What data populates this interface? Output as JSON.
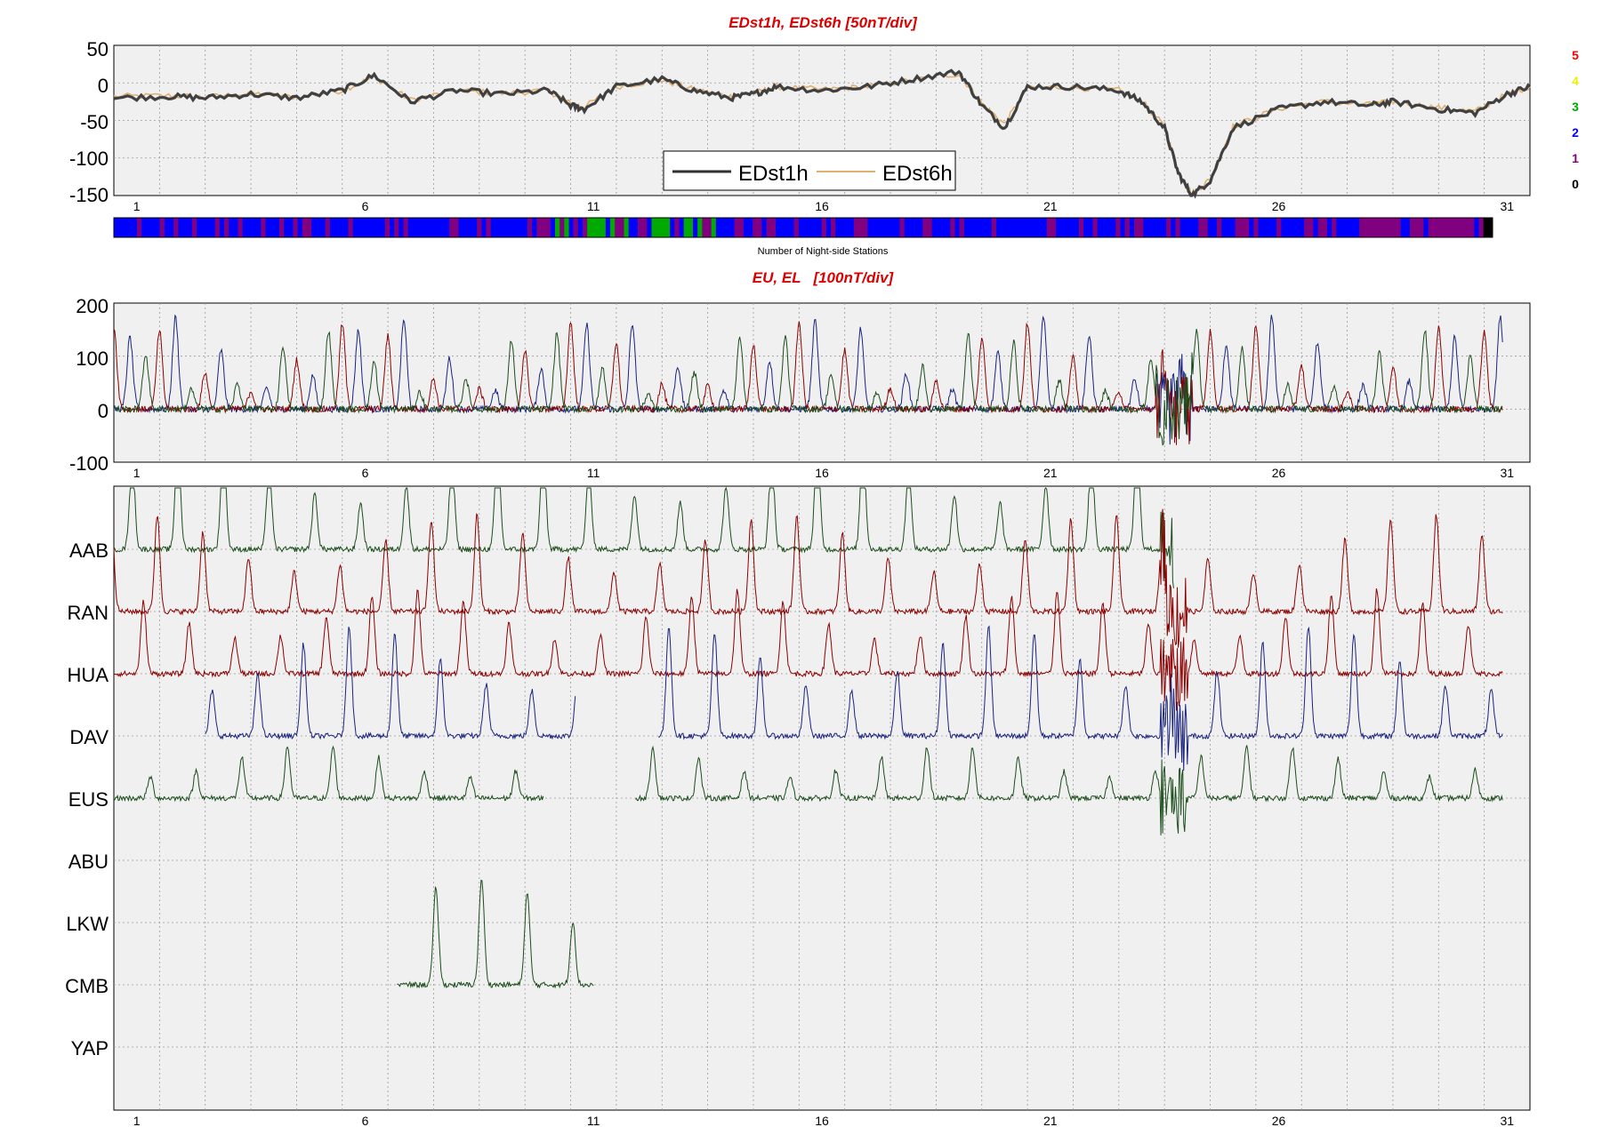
{
  "chart_data": [
    {
      "type": "line",
      "title": "EDst1h, EDst6h [50nT/div]",
      "xlim": [
        0,
        31
      ],
      "x_ticks": [
        "1",
        "6",
        "11",
        "16",
        "21",
        "26",
        "31"
      ],
      "ylim": [
        -150,
        50
      ],
      "y_ticks": [
        "50",
        "0",
        "-50",
        "-100",
        "-150"
      ],
      "grid": true,
      "legend": {
        "placement": "bottom-center",
        "entries": [
          "EDst1h",
          "EDst6h"
        ]
      },
      "series": [
        {
          "name": "EDst1h",
          "color": "#404040",
          "x": [
            0,
            1.2,
            2,
            3,
            4,
            5,
            5.7,
            6.5,
            7.5,
            8.5,
            9.5,
            10,
            10.3,
            11,
            12,
            12.7,
            13.5,
            14,
            14.5,
            15.5,
            16.5,
            17.5,
            18.5,
            19,
            19.5,
            20,
            21,
            22,
            22.5,
            23,
            23.3,
            23.6,
            24,
            24.5,
            25.5,
            26.5,
            27.5,
            28,
            29,
            29.8,
            30.5,
            31
          ],
          "values": [
            -20,
            -18,
            -20,
            -15,
            -20,
            -10,
            10,
            -25,
            -10,
            -15,
            -10,
            -30,
            -35,
            -5,
            5,
            -10,
            -20,
            -15,
            -5,
            -10,
            -5,
            5,
            15,
            -30,
            -60,
            -5,
            -5,
            -10,
            -25,
            -60,
            -120,
            -150,
            -130,
            -60,
            -35,
            -25,
            -30,
            -25,
            -35,
            -40,
            -15,
            -5
          ]
        },
        {
          "name": "EDst6h",
          "color": "#e0b070",
          "x": [
            0,
            1.2,
            2,
            3,
            4,
            5,
            5.7,
            6.5,
            7.5,
            8.5,
            9.5,
            10,
            10.3,
            11,
            12,
            12.7,
            13.5,
            14,
            14.5,
            15.5,
            16.5,
            17.5,
            18.5,
            19,
            19.5,
            20,
            21,
            22,
            22.5,
            23,
            23.3,
            23.6,
            24,
            24.5,
            25.5,
            26.5,
            27.5,
            28,
            29,
            29.8,
            30.5,
            31
          ],
          "values": [
            -18,
            -17,
            -19,
            -14,
            -19,
            -10,
            8,
            -23,
            -10,
            -14,
            -10,
            -28,
            -32,
            -5,
            4,
            -9,
            -18,
            -14,
            -5,
            -9,
            -5,
            4,
            12,
            -27,
            -55,
            -6,
            -6,
            -10,
            -24,
            -58,
            -118,
            -148,
            -128,
            -58,
            -34,
            -25,
            -29,
            -25,
            -33,
            -38,
            -15,
            -5
          ]
        }
      ]
    },
    {
      "type": "heatmap",
      "xlabel": "Number of Night-side Stations",
      "scale_labels": [
        "5",
        "4",
        "3",
        "2",
        "1",
        "0"
      ],
      "scale_colors": {
        "5": "#ff0000",
        "4": "#ffff00",
        "3": "#00aa00",
        "2": "#0000ff",
        "1": "#800080",
        "0": "#000000"
      }
    },
    {
      "type": "line",
      "title": "EU, EL   [100nT/div]",
      "xlim": [
        0,
        31
      ],
      "x_ticks": [
        "1",
        "6",
        "11",
        "16",
        "21",
        "26",
        "31"
      ],
      "ylim": [
        -100,
        200
      ],
      "y_ticks": [
        "200",
        "100",
        "0",
        "-100"
      ],
      "grid": true,
      "series": [
        {
          "color": "#1a237e"
        },
        {
          "color": "#8b0000"
        },
        {
          "color": "#1b4d1b"
        }
      ]
    },
    {
      "type": "line",
      "xlim": [
        0,
        31
      ],
      "x_ticks": [
        "1",
        "6",
        "11",
        "16",
        "21",
        "26",
        "31"
      ],
      "grid": true,
      "stations": [
        "AAB",
        "RAN",
        "HUA",
        "DAV",
        "EUS",
        "ABU",
        "LKW",
        "CMB",
        "YAP"
      ],
      "station_colors": [
        "#1b4d1b",
        "#8b0000",
        "#8b0000",
        "#1a237e",
        "#1b4d1b"
      ]
    }
  ]
}
